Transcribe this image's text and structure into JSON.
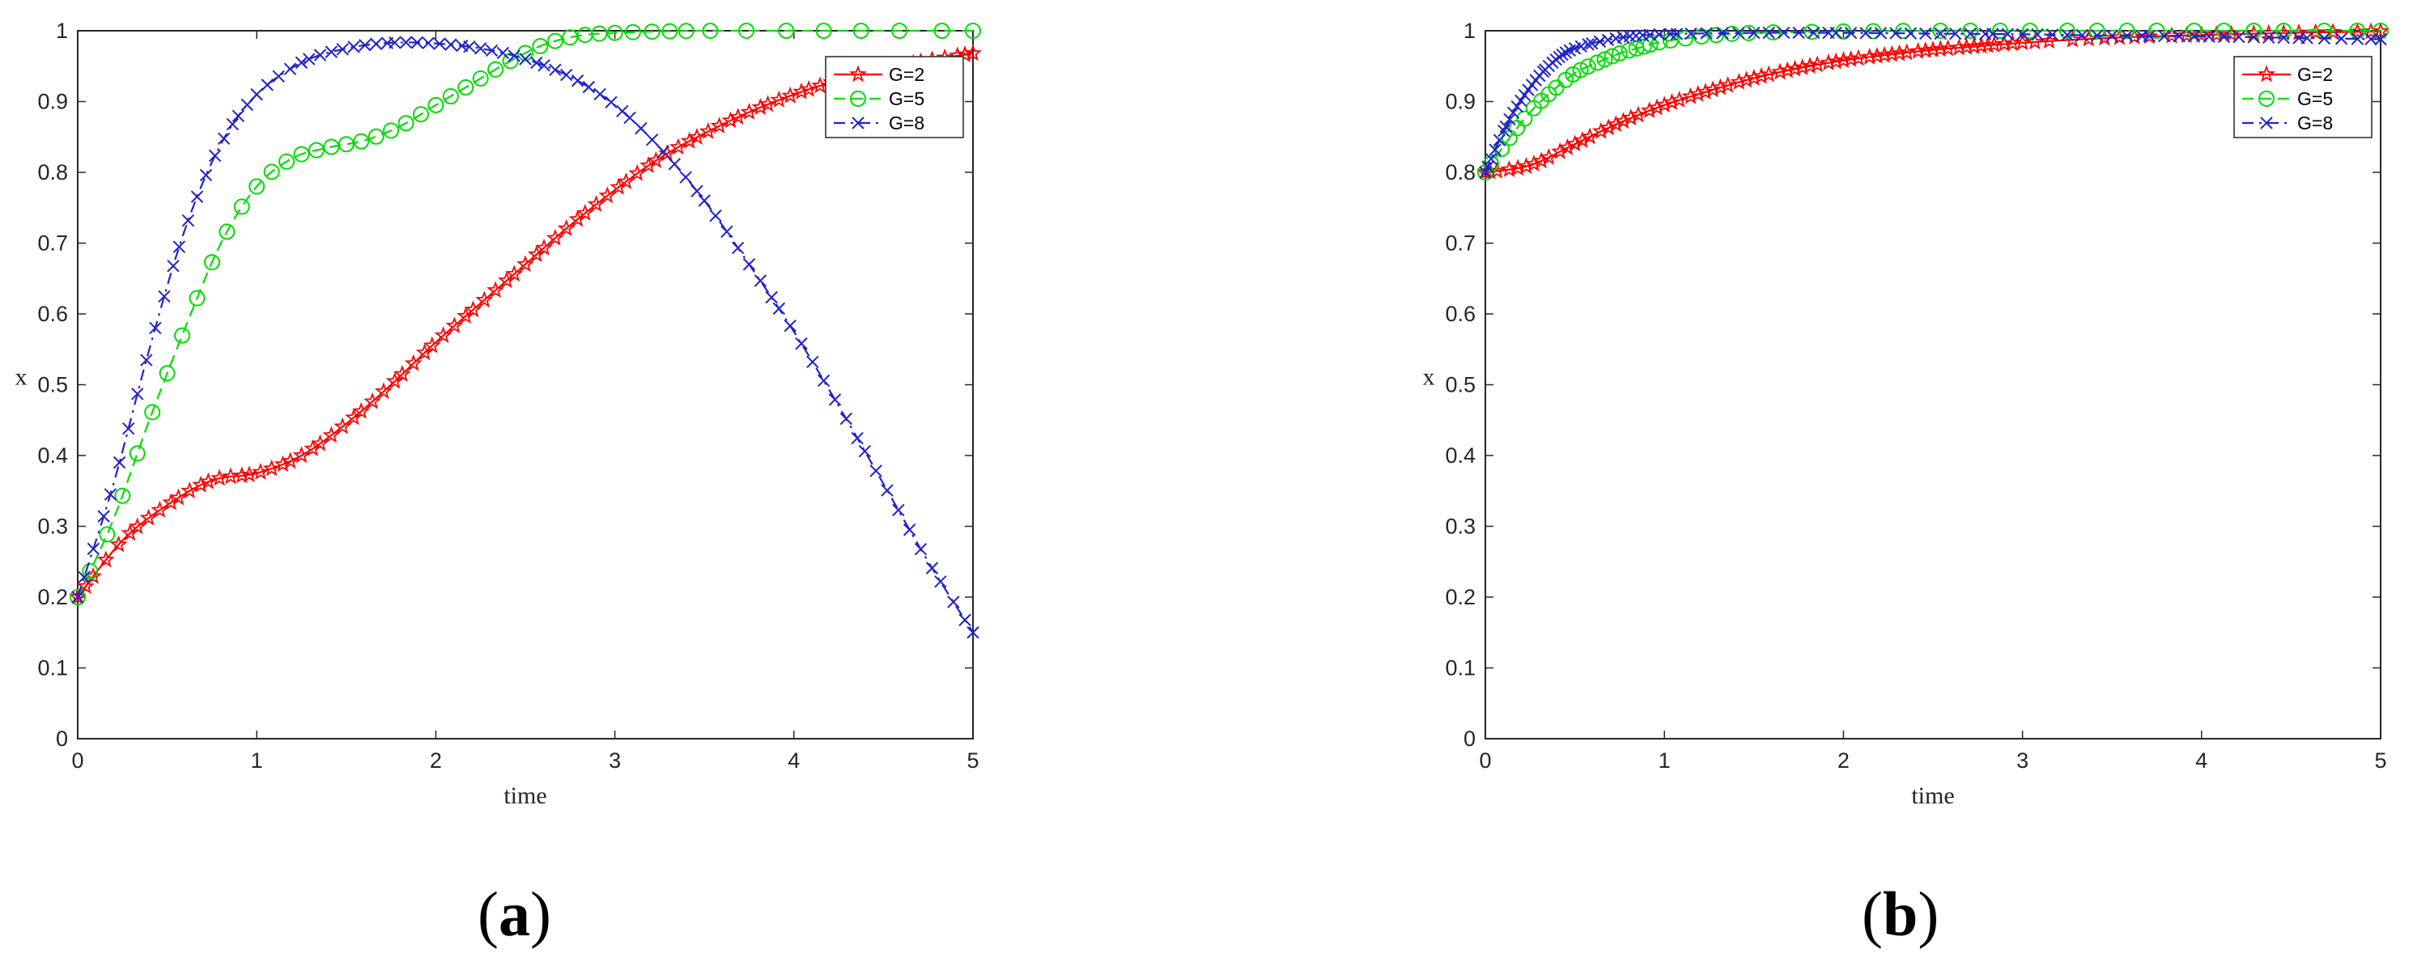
{
  "chart_data": [
    {
      "panel_label": "a",
      "type": "line",
      "xlabel": "time",
      "ylabel": "x",
      "xlim": [
        0,
        5
      ],
      "ylim": [
        0,
        1
      ],
      "xticks": [
        "0",
        "1",
        "2",
        "3",
        "4",
        "5"
      ],
      "yticks": [
        "0",
        "0.1",
        "0.2",
        "0.3",
        "0.4",
        "0.5",
        "0.6",
        "0.7",
        "0.8",
        "0.9",
        "1"
      ],
      "legend_position": "top-right",
      "series": [
        {
          "name": "G=2",
          "color": "#ff0000",
          "marker": "star",
          "line_style": "solid",
          "x": [
            0,
            0.25,
            0.5,
            0.75,
            1.0,
            1.25,
            1.5,
            1.75,
            2.0,
            2.25,
            2.5,
            2.75,
            3.0,
            3.25,
            3.5,
            3.75,
            4.0,
            4.25,
            4.5,
            4.75,
            5.0
          ],
          "y": [
            0.2,
            0.28,
            0.33,
            0.365,
            0.375,
            0.4,
            0.445,
            0.5,
            0.56,
            0.615,
            0.67,
            0.725,
            0.775,
            0.82,
            0.855,
            0.885,
            0.91,
            0.93,
            0.945,
            0.958,
            0.968
          ]
        },
        {
          "name": "G=5",
          "color": "#00dd00",
          "marker": "circle",
          "line_style": "dashed",
          "x": [
            0,
            0.2,
            0.4,
            0.6,
            0.8,
            1.0,
            1.2,
            1.4,
            1.6,
            1.8,
            2.0,
            2.2,
            2.4,
            2.6,
            2.8,
            3.0,
            3.25,
            3.5,
            4.0,
            4.5,
            5.0
          ],
          "y": [
            0.2,
            0.31,
            0.45,
            0.58,
            0.7,
            0.78,
            0.82,
            0.835,
            0.845,
            0.865,
            0.895,
            0.925,
            0.955,
            0.98,
            0.993,
            0.997,
            0.999,
            1.0,
            1.0,
            1.0,
            1.0
          ]
        },
        {
          "name": "G=8",
          "color": "#2222cc",
          "marker": "x",
          "line_style": "dashdot",
          "x": [
            0,
            0.2,
            0.4,
            0.6,
            0.8,
            1.0,
            1.25,
            1.5,
            1.75,
            2.0,
            2.25,
            2.5,
            2.75,
            3.0,
            3.25,
            3.5,
            3.75,
            4.0,
            4.25,
            4.5,
            4.75,
            5.0
          ],
          "y": [
            0.2,
            0.36,
            0.55,
            0.72,
            0.84,
            0.91,
            0.955,
            0.975,
            0.983,
            0.982,
            0.975,
            0.96,
            0.935,
            0.895,
            0.835,
            0.76,
            0.67,
            0.575,
            0.47,
            0.36,
            0.25,
            0.15
          ]
        }
      ]
    },
    {
      "panel_label": "b",
      "type": "line",
      "xlabel": "time",
      "ylabel": "x",
      "xlim": [
        0,
        5
      ],
      "ylim": [
        0,
        1
      ],
      "xticks": [
        "0",
        "1",
        "2",
        "3",
        "4",
        "5"
      ],
      "yticks": [
        "0",
        "0.1",
        "0.2",
        "0.3",
        "0.4",
        "0.5",
        "0.6",
        "0.7",
        "0.8",
        "0.9",
        "1"
      ],
      "legend_position": "top-right",
      "series": [
        {
          "name": "G=2",
          "color": "#ff0000",
          "marker": "star",
          "line_style": "solid",
          "x": [
            0,
            0.25,
            0.5,
            0.75,
            1.0,
            1.25,
            1.5,
            1.75,
            2.0,
            2.25,
            2.5,
            2.75,
            3.0,
            3.5,
            4.0,
            4.5,
            5.0
          ],
          "y": [
            0.8,
            0.81,
            0.84,
            0.87,
            0.895,
            0.915,
            0.933,
            0.947,
            0.958,
            0.966,
            0.973,
            0.978,
            0.983,
            0.99,
            0.994,
            0.997,
            0.999
          ]
        },
        {
          "name": "G=5",
          "color": "#00dd00",
          "marker": "circle",
          "line_style": "dashed",
          "x": [
            0,
            0.125,
            0.25,
            0.375,
            0.5,
            0.625,
            0.75,
            0.875,
            1.0,
            1.25,
            1.5,
            2.0,
            2.5,
            3.0,
            3.5,
            4.0,
            4.5,
            5.0
          ],
          "y": [
            0.8,
            0.845,
            0.885,
            0.915,
            0.94,
            0.955,
            0.968,
            0.977,
            0.985,
            0.993,
            0.997,
            0.999,
            1.0,
            1.0,
            1.0,
            1.0,
            1.0,
            1.0
          ]
        },
        {
          "name": "G=8",
          "color": "#2222cc",
          "marker": "x",
          "line_style": "dashdot",
          "x": [
            0,
            0.125,
            0.25,
            0.375,
            0.5,
            0.75,
            1.0,
            1.5,
            2.0,
            2.5,
            3.0,
            3.5,
            4.0,
            4.5,
            5.0
          ],
          "y": [
            0.8,
            0.87,
            0.92,
            0.955,
            0.975,
            0.99,
            0.995,
            0.997,
            0.997,
            0.996,
            0.995,
            0.993,
            0.992,
            0.99,
            0.988
          ]
        }
      ]
    }
  ],
  "captions": {
    "a": "a",
    "b": "b"
  }
}
